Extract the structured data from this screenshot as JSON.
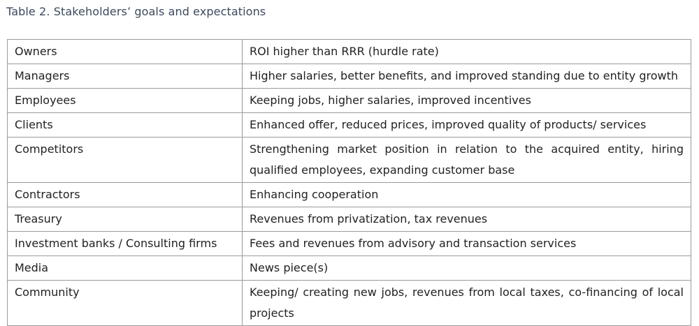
{
  "caption": "Table 2. Stakeholders’ goals and expectations",
  "rows": [
    {
      "stakeholder": "Owners",
      "expectation": "ROI higher than RRR (hurdle rate)"
    },
    {
      "stakeholder": "Managers",
      "expectation": "Higher salaries, better benefits, and improved standing due to entity growth"
    },
    {
      "stakeholder": "Employees",
      "expectation": "Keeping jobs, higher salaries, improved incentives"
    },
    {
      "stakeholder": "Clients",
      "expectation": "Enhanced offer, reduced prices, improved quality of products/ services"
    },
    {
      "stakeholder": "Competitors",
      "expectation": "Strengthening market position in relation to the acquired entity, hiring qualified employees, expanding customer base"
    },
    {
      "stakeholder": "Contractors",
      "expectation": "Enhancing cooperation"
    },
    {
      "stakeholder": "Treasury",
      "expectation": "Revenues from privatization, tax revenues"
    },
    {
      "stakeholder": "Investment banks / Consulting firms",
      "expectation": "Fees and revenues from advisory and transaction services"
    },
    {
      "stakeholder": "Media",
      "expectation": "News piece(s)"
    },
    {
      "stakeholder": "Community",
      "expectation": "Keeping/ creating new jobs, revenues from local taxes, co-financing of local projects"
    }
  ]
}
